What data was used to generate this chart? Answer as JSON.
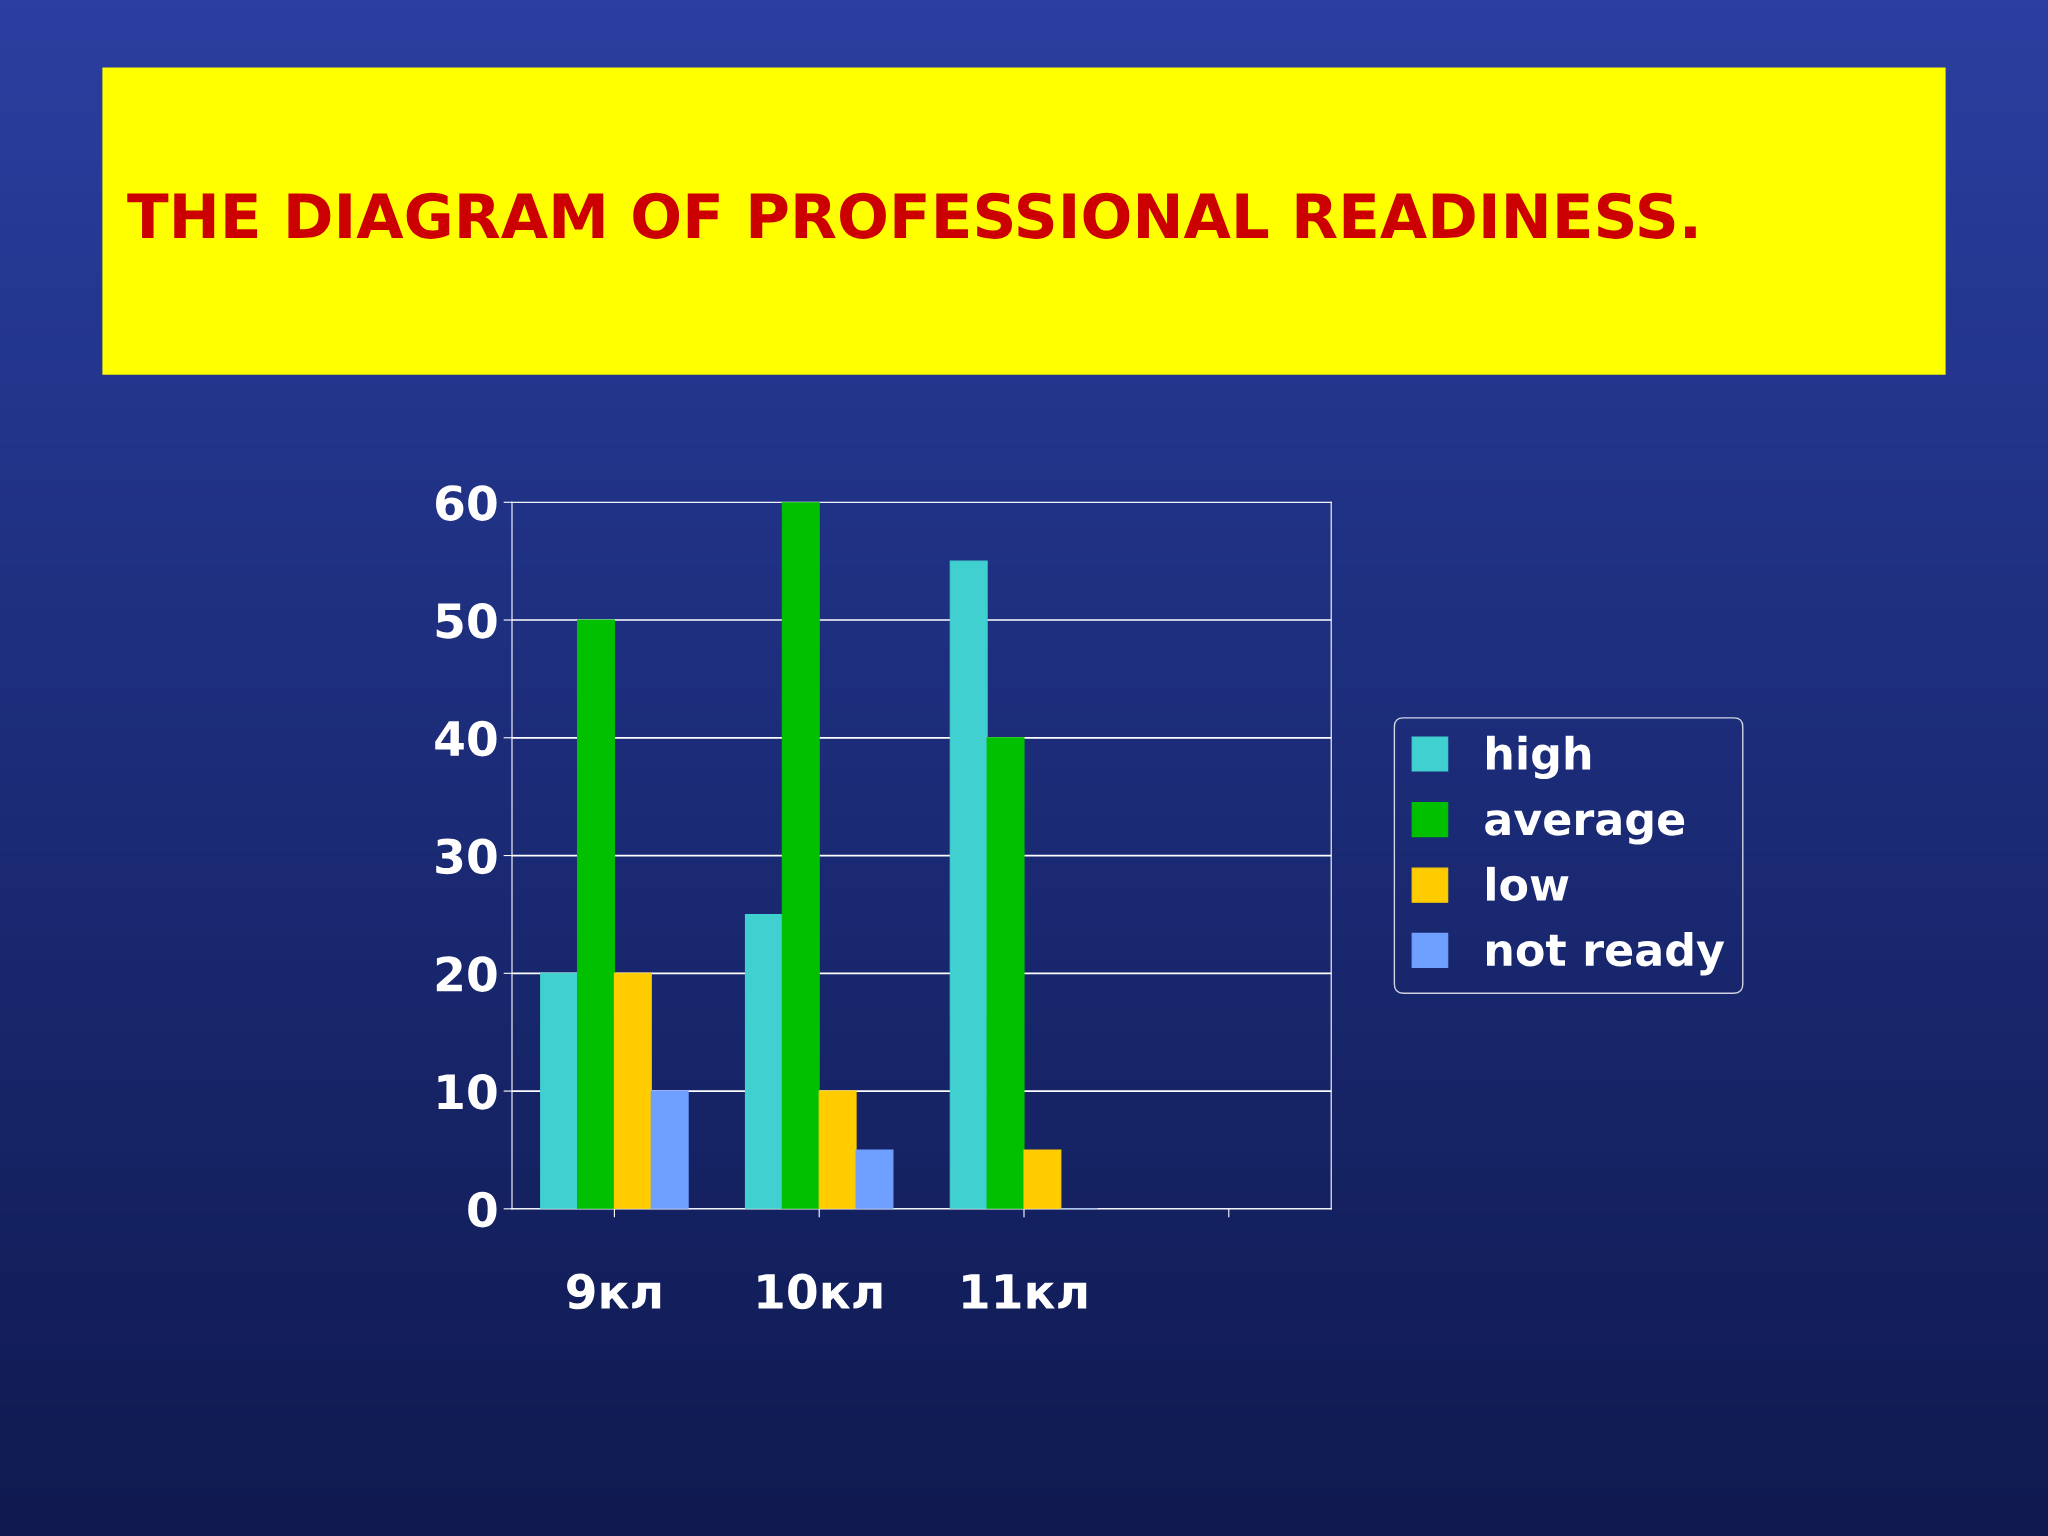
{
  "chart_data": {
    "type": "bar",
    "title": "THE DIAGRAM OF PROFESSIONAL READINESS.",
    "categories": [
      "9кл",
      "10кл",
      "11кл",
      null
    ],
    "series": [
      {
        "name": "high",
        "color": "#40d0d0",
        "values": [
          20,
          25,
          55,
          null
        ]
      },
      {
        "name": "average",
        "color": "#00c000",
        "values": [
          50,
          60,
          40,
          null
        ]
      },
      {
        "name": "low",
        "color": "#ffcc00",
        "values": [
          20,
          10,
          5,
          null
        ]
      },
      {
        "name": "not ready",
        "color": "#6f9fff",
        "values": [
          10,
          5,
          0,
          null
        ]
      }
    ],
    "ylim": [
      0,
      60
    ],
    "yticks": [
      0,
      10,
      20,
      30,
      40,
      50,
      60
    ],
    "grid": "y",
    "legend": "right"
  }
}
